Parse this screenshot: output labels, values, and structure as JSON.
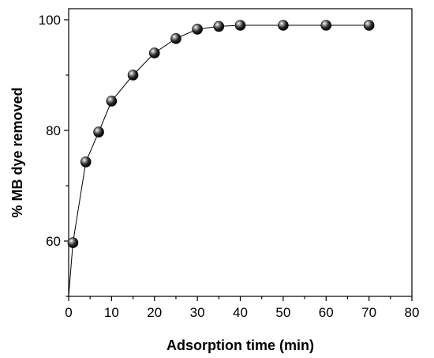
{
  "chart_data": {
    "type": "line",
    "title": "",
    "xlabel": "Adsorption time (min)",
    "ylabel": "% MB dye removed",
    "xlim": [
      0,
      80
    ],
    "ylim": [
      50,
      102
    ],
    "xticks": [
      0,
      10,
      20,
      30,
      40,
      50,
      60,
      70,
      80
    ],
    "yticks": [
      60,
      80,
      100
    ],
    "grid": false,
    "legend": "none",
    "marker": "sphere",
    "colors": {
      "line": "#000000",
      "marker": "#1a1a1a",
      "highlight": "#ffffff"
    },
    "series": [
      {
        "x": [
          0,
          1,
          4,
          7,
          10,
          15,
          20,
          25,
          30,
          35,
          40,
          50,
          60,
          70
        ],
        "y": [
          50,
          59.7,
          74.3,
          79.7,
          85.3,
          90,
          94,
          96.6,
          98.3,
          98.8,
          99,
          99,
          99,
          99
        ]
      }
    ]
  }
}
